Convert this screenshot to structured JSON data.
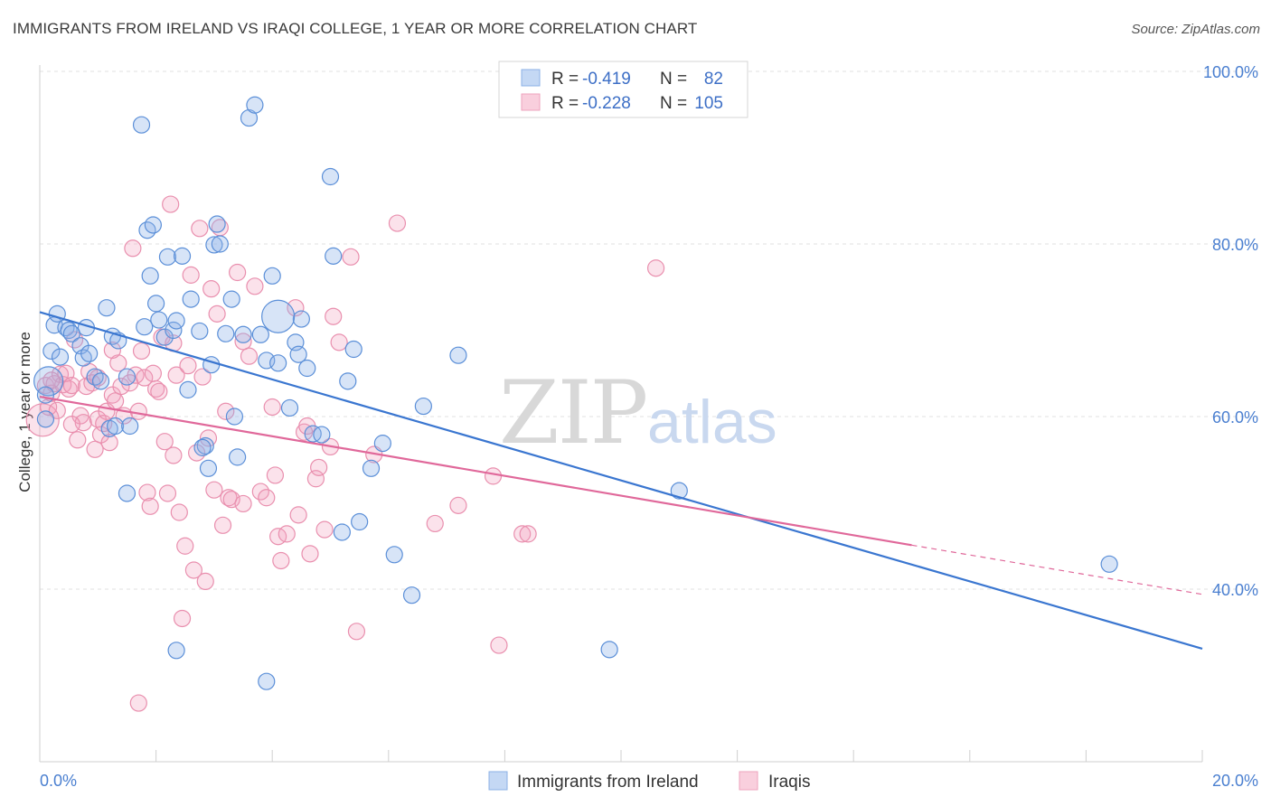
{
  "title": "IMMIGRANTS FROM IRELAND VS IRAQI COLLEGE, 1 YEAR OR MORE CORRELATION CHART",
  "source": "Source: ZipAtlas.com",
  "watermark": {
    "zip": "ZIP",
    "atlas": "atlas"
  },
  "legend_box": {
    "rows": [
      {
        "r_label": "R =",
        "r_value": "-0.419",
        "n_label": "N =",
        "n_value": "82",
        "color": "#9dbfee"
      },
      {
        "r_label": "R =",
        "r_value": "-0.228",
        "n_label": "N =",
        "n_value": "105",
        "color": "#f5b6cb"
      }
    ]
  },
  "bottom_legend": {
    "items": [
      {
        "label": "Immigrants from Ireland",
        "color": "#9dbfee"
      },
      {
        "label": "Iraqis",
        "color": "#f5b6cb"
      }
    ]
  },
  "colors": {
    "ireland_fill": "rgba(140,178,232,0.35)",
    "ireland_stroke": "#5b8fd8",
    "ireland_line": "#3a76d0",
    "iraqi_fill": "rgba(243,160,188,0.30)",
    "iraqi_stroke": "#e98fae",
    "iraqi_line": "#e0689a"
  },
  "chart_data": {
    "type": "scatter",
    "title": "IMMIGRANTS FROM IRELAND VS IRAQI COLLEGE, 1 YEAR OR MORE CORRELATION CHART",
    "xlabel": "",
    "ylabel": "College, 1 year or more",
    "xlim": [
      0,
      20
    ],
    "ylim": [
      20,
      100
    ],
    "x_tick_labels": [
      "0.0%",
      "20.0%"
    ],
    "y_tick_labels": [
      "100.0%",
      "80.0%",
      "60.0%",
      "40.0%"
    ],
    "y_ticks": [
      100,
      80,
      60,
      40
    ],
    "grid": true,
    "legend_position": "top-center",
    "series": [
      {
        "name": "Immigrants from Ireland",
        "r": -0.419,
        "n": 82,
        "trend": {
          "x0": 0,
          "y0": 72.1,
          "x1": 20,
          "y1": 33.1
        },
        "points": [
          [
            0.15,
            64.1
          ],
          [
            0.2,
            67.6
          ],
          [
            0.25,
            70.6
          ],
          [
            0.3,
            71.9
          ],
          [
            0.35,
            66.9
          ],
          [
            0.45,
            70.3
          ],
          [
            0.5,
            70.0
          ],
          [
            0.55,
            69.6
          ],
          [
            0.7,
            68.2
          ],
          [
            0.75,
            66.8
          ],
          [
            0.8,
            70.3
          ],
          [
            0.85,
            67.3
          ],
          [
            0.95,
            64.6
          ],
          [
            1.05,
            64.1
          ],
          [
            1.15,
            72.6
          ],
          [
            1.2,
            58.6
          ],
          [
            1.25,
            69.3
          ],
          [
            1.3,
            58.9
          ],
          [
            1.35,
            68.8
          ],
          [
            1.5,
            64.6
          ],
          [
            1.55,
            58.9
          ],
          [
            1.75,
            93.8
          ],
          [
            1.85,
            81.6
          ],
          [
            1.9,
            76.3
          ],
          [
            1.95,
            82.2
          ],
          [
            2.0,
            73.1
          ],
          [
            2.05,
            71.2
          ],
          [
            2.15,
            69.2
          ],
          [
            2.2,
            78.5
          ],
          [
            2.3,
            70.0
          ],
          [
            2.35,
            71.1
          ],
          [
            2.45,
            78.6
          ],
          [
            2.55,
            63.1
          ],
          [
            2.6,
            73.6
          ],
          [
            2.75,
            69.9
          ],
          [
            2.85,
            56.6
          ],
          [
            2.9,
            54.0
          ],
          [
            2.95,
            66.0
          ],
          [
            3.0,
            79.9
          ],
          [
            3.05,
            82.3
          ],
          [
            3.1,
            80.0
          ],
          [
            3.2,
            69.6
          ],
          [
            3.3,
            73.6
          ],
          [
            3.4,
            55.3
          ],
          [
            3.5,
            69.5
          ],
          [
            3.6,
            94.6
          ],
          [
            3.7,
            96.1
          ],
          [
            3.8,
            69.5
          ],
          [
            3.9,
            66.5
          ],
          [
            4.0,
            76.3
          ],
          [
            4.1,
            66.2
          ],
          [
            4.3,
            61.0
          ],
          [
            4.4,
            68.6
          ],
          [
            4.45,
            67.2
          ],
          [
            4.5,
            71.3
          ],
          [
            4.6,
            65.6
          ],
          [
            4.7,
            58.0
          ],
          [
            4.85,
            57.9
          ],
          [
            5.0,
            87.8
          ],
          [
            5.05,
            78.6
          ],
          [
            5.2,
            46.6
          ],
          [
            5.3,
            64.1
          ],
          [
            5.4,
            67.8
          ],
          [
            5.5,
            47.8
          ],
          [
            5.7,
            54.0
          ],
          [
            5.9,
            56.9
          ],
          [
            6.1,
            44.0
          ],
          [
            6.4,
            39.3
          ],
          [
            7.2,
            67.1
          ],
          [
            9.8,
            33.0
          ],
          [
            11.0,
            51.4
          ],
          [
            18.4,
            42.9
          ],
          [
            2.35,
            32.9
          ],
          [
            3.9,
            29.3
          ],
          [
            1.5,
            51.1
          ],
          [
            2.8,
            56.4
          ],
          [
            0.1,
            59.7
          ],
          [
            0.1,
            62.5
          ],
          [
            4.1,
            71.6
          ],
          [
            1.8,
            70.4
          ],
          [
            3.35,
            60.0
          ],
          [
            6.6,
            61.2
          ]
        ],
        "sizes": {
          "0": 16,
          "78": 18
        }
      },
      {
        "name": "Iraqis",
        "r": -0.228,
        "n": 105,
        "trend": {
          "x0": 0,
          "y0": 62.3,
          "x1": 15,
          "y1": 45.1,
          "dash_x1": 20,
          "dash_y1": 39.4
        },
        "points": [
          [
            0.05,
            59.6
          ],
          [
            0.1,
            63.6
          ],
          [
            0.15,
            61.1
          ],
          [
            0.2,
            62.7
          ],
          [
            0.25,
            63.8
          ],
          [
            0.3,
            60.7
          ],
          [
            0.35,
            64.9
          ],
          [
            0.4,
            63.7
          ],
          [
            0.45,
            65.0
          ],
          [
            0.5,
            63.2
          ],
          [
            0.55,
            63.6
          ],
          [
            0.6,
            68.9
          ],
          [
            0.65,
            57.3
          ],
          [
            0.7,
            60.1
          ],
          [
            0.75,
            59.3
          ],
          [
            0.8,
            63.5
          ],
          [
            0.85,
            65.2
          ],
          [
            0.9,
            63.9
          ],
          [
            0.95,
            56.2
          ],
          [
            1.0,
            59.7
          ],
          [
            1.05,
            57.9
          ],
          [
            1.1,
            59.2
          ],
          [
            1.15,
            60.6
          ],
          [
            1.2,
            57.0
          ],
          [
            1.25,
            62.5
          ],
          [
            1.3,
            61.8
          ],
          [
            1.35,
            66.2
          ],
          [
            1.4,
            63.5
          ],
          [
            1.45,
            60.1
          ],
          [
            1.55,
            63.9
          ],
          [
            1.6,
            79.5
          ],
          [
            1.65,
            64.8
          ],
          [
            1.7,
            60.6
          ],
          [
            1.75,
            67.6
          ],
          [
            1.8,
            64.5
          ],
          [
            1.85,
            51.2
          ],
          [
            1.9,
            49.6
          ],
          [
            1.95,
            65.0
          ],
          [
            2.0,
            63.2
          ],
          [
            2.05,
            62.9
          ],
          [
            2.1,
            69.2
          ],
          [
            2.15,
            57.1
          ],
          [
            2.2,
            51.1
          ],
          [
            2.25,
            84.6
          ],
          [
            2.3,
            55.5
          ],
          [
            2.35,
            64.8
          ],
          [
            2.4,
            48.9
          ],
          [
            2.45,
            36.6
          ],
          [
            2.5,
            45.0
          ],
          [
            2.55,
            65.9
          ],
          [
            2.6,
            76.4
          ],
          [
            2.65,
            42.2
          ],
          [
            2.7,
            55.8
          ],
          [
            2.75,
            81.8
          ],
          [
            2.8,
            64.6
          ],
          [
            2.85,
            40.9
          ],
          [
            2.9,
            57.5
          ],
          [
            2.95,
            74.8
          ],
          [
            3.0,
            51.5
          ],
          [
            3.05,
            71.9
          ],
          [
            3.1,
            81.9
          ],
          [
            3.15,
            47.4
          ],
          [
            3.2,
            60.6
          ],
          [
            3.25,
            50.6
          ],
          [
            3.3,
            50.4
          ],
          [
            3.4,
            76.7
          ],
          [
            3.5,
            49.9
          ],
          [
            3.6,
            67.0
          ],
          [
            3.7,
            75.1
          ],
          [
            3.8,
            51.3
          ],
          [
            3.9,
            50.6
          ],
          [
            4.0,
            61.1
          ],
          [
            4.05,
            53.2
          ],
          [
            4.1,
            46.1
          ],
          [
            4.15,
            43.3
          ],
          [
            4.25,
            46.4
          ],
          [
            4.4,
            72.6
          ],
          [
            4.45,
            48.6
          ],
          [
            4.55,
            58.2
          ],
          [
            4.6,
            58.9
          ],
          [
            4.65,
            44.1
          ],
          [
            4.75,
            52.8
          ],
          [
            4.8,
            54.1
          ],
          [
            4.9,
            46.9
          ],
          [
            5.0,
            56.5
          ],
          [
            5.05,
            71.6
          ],
          [
            5.15,
            68.6
          ],
          [
            5.35,
            78.5
          ],
          [
            5.45,
            35.1
          ],
          [
            5.75,
            55.6
          ],
          [
            6.15,
            82.4
          ],
          [
            6.8,
            47.6
          ],
          [
            7.2,
            49.7
          ],
          [
            7.8,
            53.1
          ],
          [
            7.9,
            33.5
          ],
          [
            8.3,
            46.4
          ],
          [
            8.4,
            46.4
          ],
          [
            10.6,
            77.2
          ],
          [
            1.7,
            26.8
          ],
          [
            0.55,
            59.1
          ],
          [
            1.0,
            64.5
          ],
          [
            0.2,
            64.2
          ],
          [
            2.3,
            68.5
          ],
          [
            1.25,
            67.7
          ],
          [
            3.5,
            68.7
          ]
        ],
        "sizes": {
          "0": 18
        }
      }
    ]
  }
}
